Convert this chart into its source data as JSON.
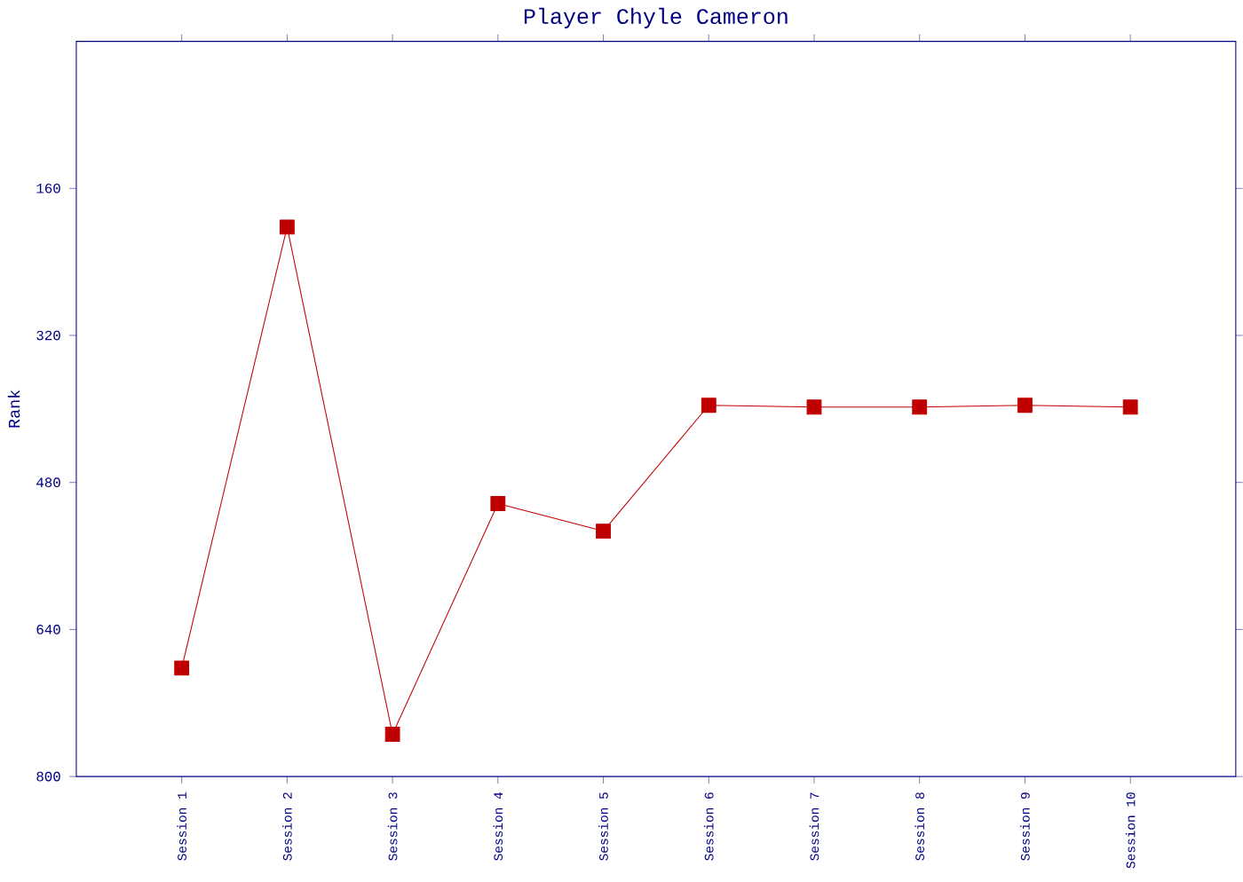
{
  "chart_data": {
    "type": "line",
    "title": "Player Chyle Cameron",
    "ylabel": "Rank",
    "categories": [
      "Session 1",
      "Session 2",
      "Session 3",
      "Session 4",
      "Session 5",
      "Session 6",
      "Session 7",
      "Session 8",
      "Session 9",
      "Session 10"
    ],
    "series": [
      {
        "color": "#c00000",
        "values": [
          682,
          202,
          754,
          503,
          533,
          396,
          398,
          398,
          396,
          398
        ]
      }
    ],
    "ylim": [
      800,
      0
    ],
    "yticks": [
      160,
      320,
      480,
      640,
      800
    ],
    "marker": "square",
    "line_style": "solid"
  }
}
